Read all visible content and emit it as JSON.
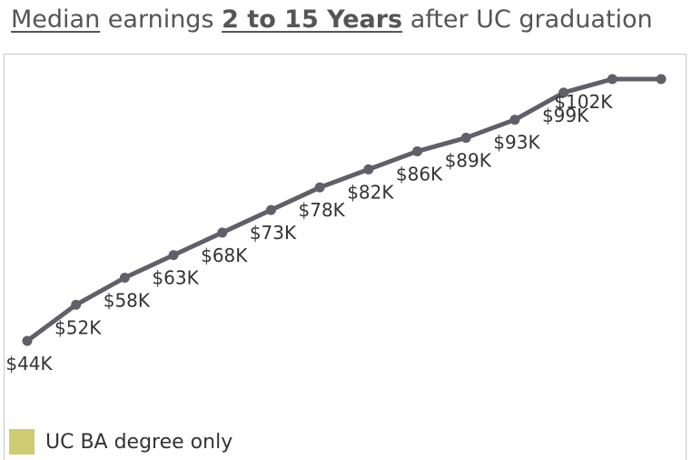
{
  "title": {
    "part1": "Median",
    "part2": " earnings ",
    "part3": "2 to 15 Years",
    "part4": " after UC graduation"
  },
  "colors": {
    "line": "#5f6068",
    "legend_swatch": "#cfcb72"
  },
  "legend": {
    "label": "UC BA degree only"
  },
  "chart_data": {
    "type": "line",
    "title": "Median earnings 2 to 15 Years after UC graduation",
    "x": [
      2,
      3,
      4,
      5,
      6,
      7,
      8,
      9,
      10,
      11,
      12,
      13,
      14,
      15
    ],
    "values": [
      44,
      52,
      58,
      63,
      68,
      73,
      78,
      82,
      86,
      89,
      93,
      99,
      102,
      102
    ],
    "labels": [
      "$44K",
      "$52K",
      "$58K",
      "$63K",
      "$68K",
      "$73K",
      "$78K",
      "$82K",
      "$86K",
      "$89K",
      "$93K",
      "$99K",
      "$102K",
      ""
    ],
    "ylim": [
      44,
      102
    ],
    "grid": false
  }
}
